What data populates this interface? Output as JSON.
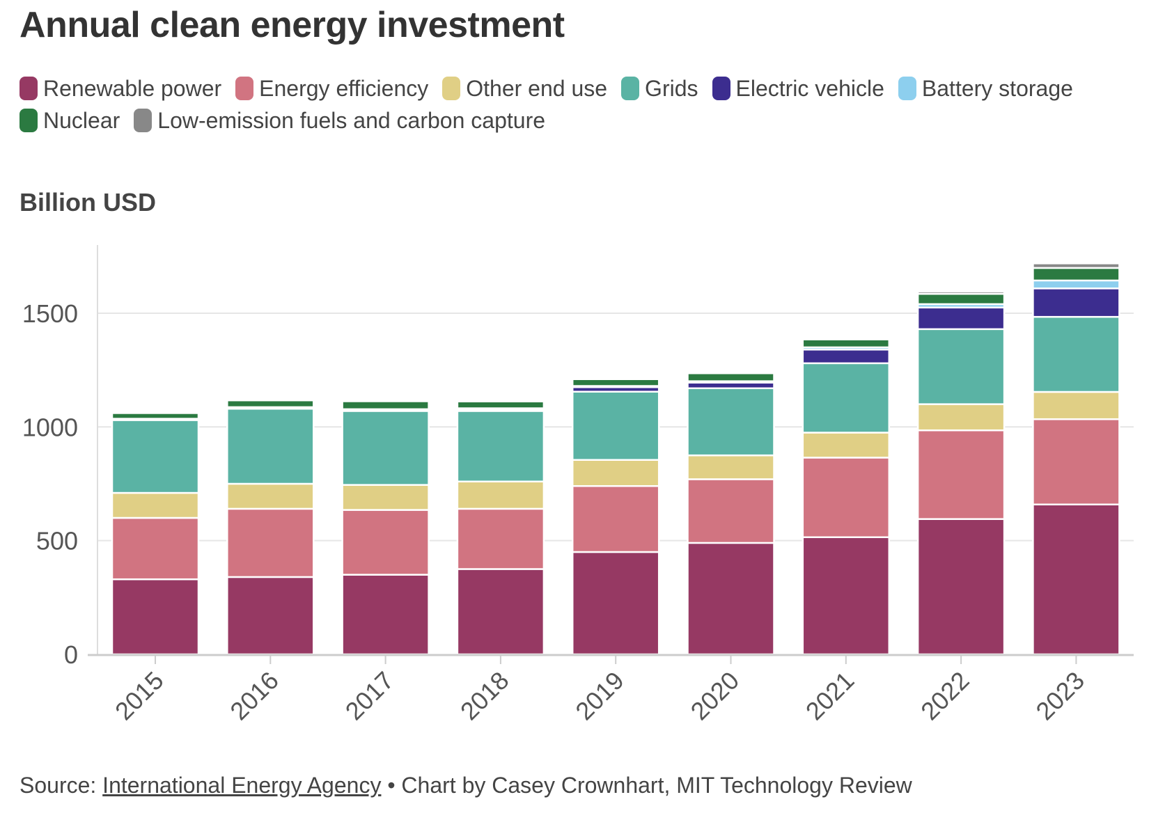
{
  "title": "Annual clean energy investment",
  "legend_rows": [
    [
      "Renewable power",
      "Energy efficiency",
      "Other end use",
      "Grids",
      "Electric vehicle",
      "Battery storage"
    ],
    [
      "Nuclear",
      "Low-emission fuels and carbon capture"
    ]
  ],
  "footer": {
    "source_prefix": "Source:",
    "source_link": "International Energy Agency",
    "credit": "• Chart by Casey Crownhart, MIT Technology Review"
  },
  "chart_data": {
    "type": "bar",
    "stacked": true,
    "title": "Annual clean energy investment",
    "ylabel": "Billion USD",
    "xlabel": "",
    "ylim": [
      0,
      1800
    ],
    "yticks": [
      0,
      500,
      1000,
      1500
    ],
    "grid": true,
    "legend_position": "top",
    "categories": [
      "2015",
      "2016",
      "2017",
      "2018",
      "2019",
      "2020",
      "2021",
      "2022",
      "2023"
    ],
    "series": [
      {
        "name": "Renewable power",
        "color": "#963963",
        "values": [
          330,
          340,
          350,
          375,
          450,
          490,
          515,
          595,
          659
        ]
      },
      {
        "name": "Energy efficiency",
        "color": "#d17481",
        "values": [
          270,
          300,
          285,
          265,
          290,
          280,
          350,
          390,
          375
        ]
      },
      {
        "name": "Other end use",
        "color": "#e0cf85",
        "values": [
          110,
          110,
          110,
          120,
          115,
          105,
          110,
          115,
          120
        ]
      },
      {
        "name": "Grids",
        "color": "#5ab3a4",
        "values": [
          320,
          330,
          325,
          310,
          300,
          295,
          305,
          330,
          330
        ]
      },
      {
        "name": "Electric vehicle",
        "color": "#3c2d8f",
        "values": [
          5,
          5,
          5,
          7,
          20,
          25,
          60,
          95,
          125
        ]
      },
      {
        "name": "Battery storage",
        "color": "#8dcfee",
        "values": [
          1,
          2,
          3,
          5,
          5,
          6,
          10,
          15,
          35
        ]
      },
      {
        "name": "Nuclear",
        "color": "#2b7a41",
        "values": [
          25,
          30,
          35,
          30,
          30,
          35,
          35,
          45,
          55
        ]
      },
      {
        "name": "Low-emission fuels and carbon capture",
        "color": "#888888",
        "values": [
          5,
          5,
          5,
          5,
          5,
          5,
          5,
          10,
          20
        ]
      }
    ]
  }
}
